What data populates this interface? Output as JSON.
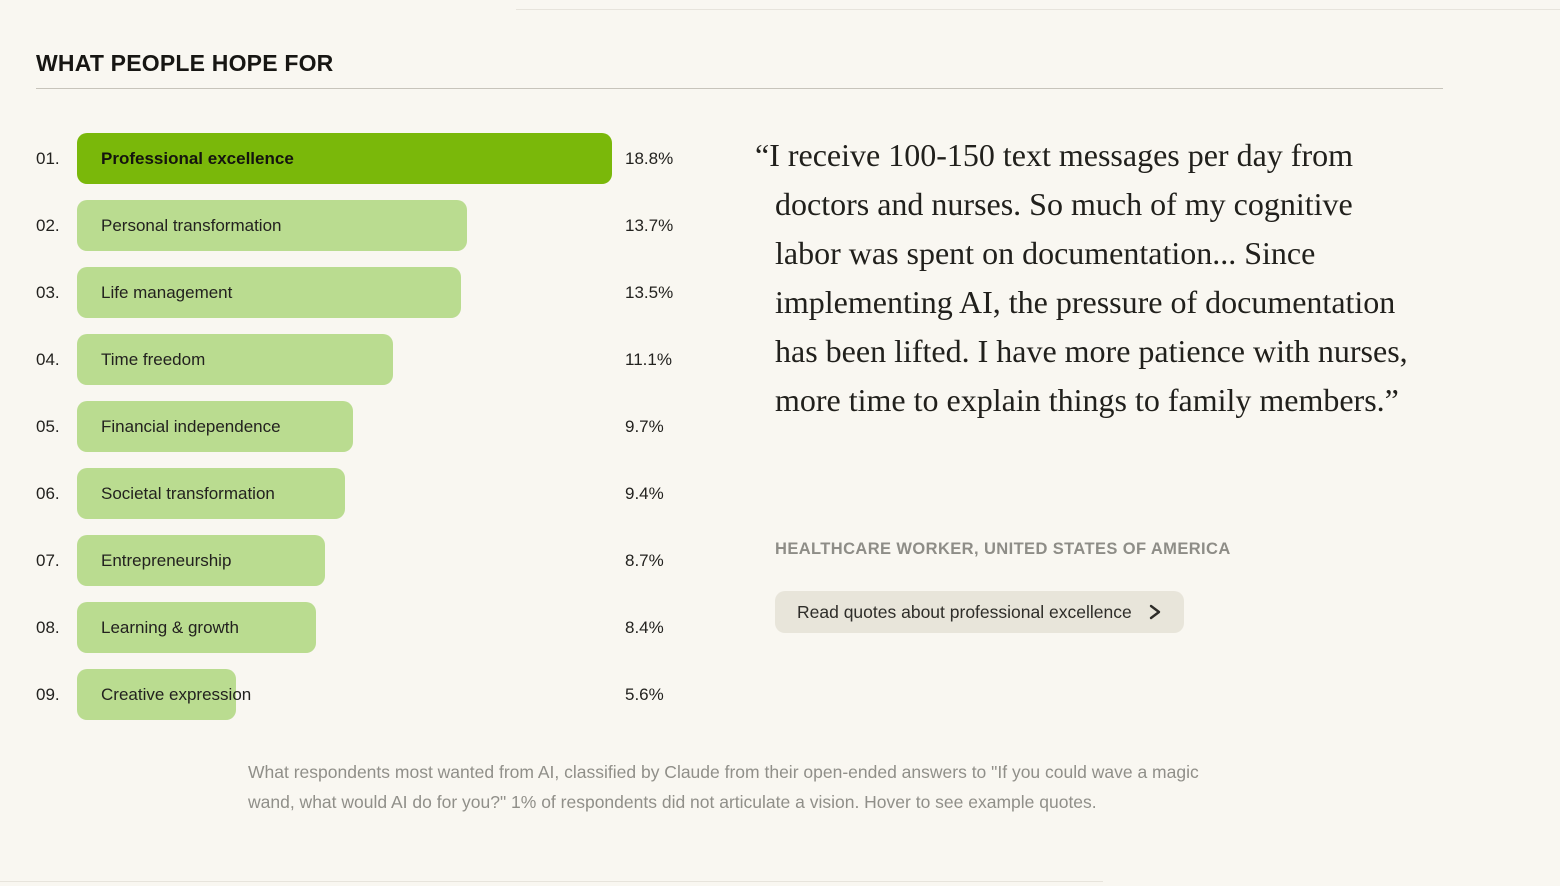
{
  "page": {
    "title": "WHAT PEOPLE HOPE FOR",
    "background_color": "#f9f7f1"
  },
  "chart_data": {
    "type": "bar",
    "orientation": "horizontal",
    "title": "WHAT PEOPLE HOPE FOR",
    "ranks": [
      "01.",
      "02.",
      "03.",
      "04.",
      "05.",
      "06.",
      "07.",
      "08.",
      "09."
    ],
    "categories": [
      "Professional excellence",
      "Personal transformation",
      "Life management",
      "Time freedom",
      "Financial independence",
      "Societal transformation",
      "Entrepreneurship",
      "Learning & growth",
      "Creative expression"
    ],
    "values": [
      18.8,
      13.7,
      13.5,
      11.1,
      9.7,
      9.4,
      8.7,
      8.4,
      5.6
    ],
    "value_labels": [
      "18.8%",
      "13.7%",
      "13.5%",
      "11.1%",
      "9.7%",
      "9.4%",
      "8.7%",
      "8.4%",
      "5.6%"
    ],
    "xlim": [
      0,
      18.8
    ],
    "highlighted_index": 0,
    "colors": {
      "highlight": "#7ab80a",
      "default": "#badc90"
    },
    "legend": "none",
    "grid": false,
    "caption": "What respondents most wanted from AI, classified by Claude from their open-ended answers to \"If you could wave a magic wand, what would AI do for you?\" 1% of respondents did not articulate a vision. Hover to see example quotes."
  },
  "quote_panel": {
    "quote": "“I receive 100-150 text messages per day from doctors and nurses. So much of my cognitive labor was spent on documentation... Since implementing AI, the pressure of documentation has been lifted. I have more patience with nurses, more time to explain things to family members.”",
    "attribution": "HEALTHCARE WORKER, UNITED STATES OF AMERICA",
    "button_label": "Read quotes about professional excellence"
  }
}
